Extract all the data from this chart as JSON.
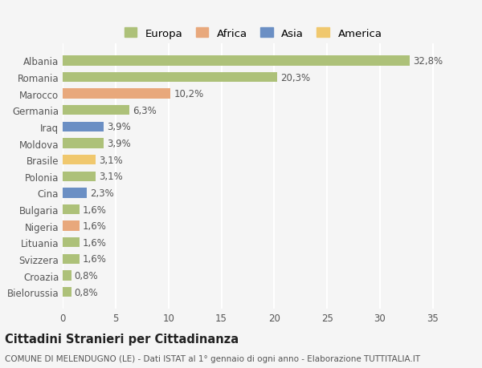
{
  "categories": [
    "Albania",
    "Romania",
    "Marocco",
    "Germania",
    "Iraq",
    "Moldova",
    "Brasile",
    "Polonia",
    "Cina",
    "Bulgaria",
    "Nigeria",
    "Lituania",
    "Svizzera",
    "Croazia",
    "Bielorussia"
  ],
  "values": [
    32.8,
    20.3,
    10.2,
    6.3,
    3.9,
    3.9,
    3.1,
    3.1,
    2.3,
    1.6,
    1.6,
    1.6,
    1.6,
    0.8,
    0.8
  ],
  "labels": [
    "32,8%",
    "20,3%",
    "10,2%",
    "6,3%",
    "3,9%",
    "3,9%",
    "3,1%",
    "3,1%",
    "2,3%",
    "1,6%",
    "1,6%",
    "1,6%",
    "1,6%",
    "0,8%",
    "0,8%"
  ],
  "colors": [
    "#adc179",
    "#adc179",
    "#e8a87c",
    "#adc179",
    "#6b8fc4",
    "#adc179",
    "#f0c86e",
    "#adc179",
    "#6b8fc4",
    "#adc179",
    "#e8a87c",
    "#adc179",
    "#adc179",
    "#adc179",
    "#adc179"
  ],
  "legend_labels": [
    "Europa",
    "Africa",
    "Asia",
    "America"
  ],
  "legend_colors": [
    "#adc179",
    "#e8a87c",
    "#6b8fc4",
    "#f0c86e"
  ],
  "title": "Cittadini Stranieri per Cittadinanza",
  "subtitle": "COMUNE DI MELENDUGNO (LE) - Dati ISTAT al 1° gennaio di ogni anno - Elaborazione TUTTITALIA.IT",
  "xlim": [
    0,
    36
  ],
  "xticks": [
    0,
    5,
    10,
    15,
    20,
    25,
    30,
    35
  ],
  "background_color": "#f5f5f5",
  "bar_height": 0.6,
  "label_fontsize": 8.5,
  "tick_fontsize": 8.5
}
